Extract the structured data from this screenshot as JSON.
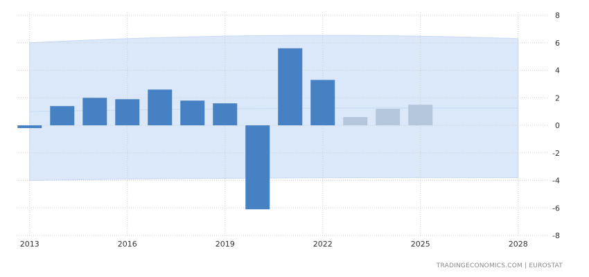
{
  "chart_data": {
    "type": "bar",
    "x": [
      2013,
      2014,
      2015,
      2016,
      2017,
      2018,
      2019,
      2020,
      2021,
      2022,
      2023,
      2024,
      2025
    ],
    "values": [
      -0.2,
      1.4,
      2.0,
      1.9,
      2.6,
      1.8,
      1.6,
      -6.1,
      5.6,
      3.3,
      0.6,
      1.2,
      1.5
    ],
    "forecast_from": 2023,
    "band": {
      "x": [
        2013,
        2028
      ],
      "upper": [
        6.0,
        6.3
      ],
      "lower": [
        -4.0,
        -3.8
      ],
      "center": [
        1.0,
        1.25
      ]
    },
    "x_ticks": [
      "2013",
      "2016",
      "2019",
      "2022",
      "2025",
      "2028"
    ],
    "y_ticks": [
      "8",
      "6",
      "4",
      "2",
      "0",
      "-2",
      "-4",
      "-6",
      "-8"
    ],
    "ylim": [
      -8,
      8
    ],
    "xlim": [
      2012.6,
      2028.9
    ],
    "title": "",
    "xlabel": "",
    "ylabel": "",
    "grid": true,
    "legend": "none",
    "colors": {
      "actual": "#4682c3",
      "forecast": "#b4c6dc",
      "band": "#dbe8fa",
      "band_edge": "#c6d9f3",
      "grid": "#cfcfcf"
    }
  },
  "footer": {
    "source": "TRADINGECONOMICS.COM  |  EUROSTAT"
  }
}
